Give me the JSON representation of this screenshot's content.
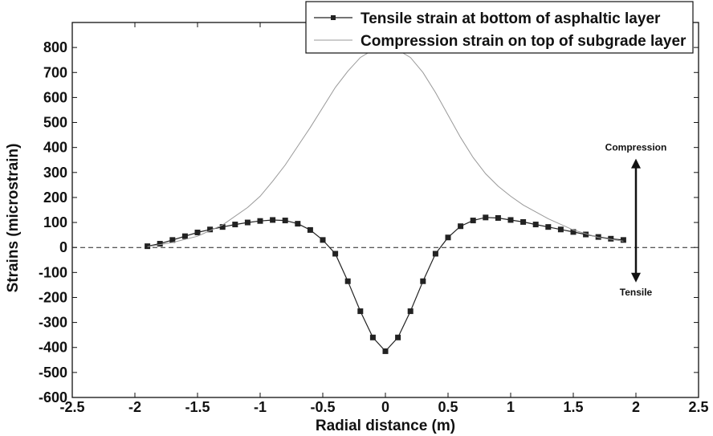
{
  "chart_data": {
    "type": "line",
    "xlabel": "Radial distance (m)",
    "ylabel": "Strains (microstrain)",
    "xlim": [
      -2.5,
      2.5
    ],
    "ylim": [
      -600,
      900
    ],
    "x_ticks": [
      -2.5,
      -2,
      -1.5,
      -1,
      -0.5,
      0,
      0.5,
      1,
      1.5,
      2,
      2.5
    ],
    "y_ticks": [
      -600,
      -500,
      -400,
      -300,
      -200,
      -100,
      0,
      100,
      200,
      300,
      400,
      500,
      600,
      700,
      800
    ],
    "x_tick_labels": [
      "-2.5",
      "-2",
      "-1.5",
      "-1",
      "-0.5",
      "0",
      "0.5",
      "1",
      "1.5",
      "2",
      "2.5"
    ],
    "y_tick_labels": [
      "-600",
      "-500",
      "-400",
      "-300",
      "-200",
      "-100",
      "0",
      "100",
      "200",
      "300",
      "400",
      "500",
      "600",
      "700",
      "800"
    ],
    "grid": false,
    "legend_position": "top-right",
    "series": [
      {
        "name": "Tensile strain at bottom of asphaltic layer",
        "color": "#222222",
        "marker": "square",
        "x": [
          -1.9,
          -1.8,
          -1.7,
          -1.6,
          -1.5,
          -1.4,
          -1.3,
          -1.2,
          -1.1,
          -1.0,
          -0.9,
          -0.8,
          -0.7,
          -0.6,
          -0.5,
          -0.4,
          -0.3,
          -0.2,
          -0.1,
          0.0,
          0.1,
          0.2,
          0.3,
          0.4,
          0.5,
          0.6,
          0.7,
          0.8,
          0.9,
          1.0,
          1.1,
          1.2,
          1.3,
          1.4,
          1.5,
          1.6,
          1.7,
          1.8,
          1.9
        ],
        "y": [
          5,
          15,
          30,
          45,
          60,
          72,
          82,
          92,
          100,
          106,
          110,
          108,
          95,
          70,
          30,
          -25,
          -135,
          -255,
          -360,
          -415,
          -360,
          -255,
          -135,
          -25,
          40,
          85,
          108,
          120,
          118,
          110,
          102,
          92,
          82,
          72,
          62,
          52,
          42,
          35,
          30
        ]
      },
      {
        "name": "Compression strain on top of subgrade layer",
        "color": "#999999",
        "marker": "none",
        "x": [
          -1.9,
          -1.7,
          -1.5,
          -1.3,
          -1.1,
          -1.0,
          -0.9,
          -0.8,
          -0.7,
          -0.6,
          -0.5,
          -0.4,
          -0.3,
          -0.2,
          -0.1,
          0.0,
          0.1,
          0.2,
          0.3,
          0.4,
          0.5,
          0.6,
          0.7,
          0.8,
          0.9,
          1.0,
          1.1,
          1.3,
          1.5,
          1.7,
          1.9
        ],
        "y": [
          3,
          20,
          45,
          90,
          160,
          205,
          265,
          330,
          405,
          480,
          560,
          640,
          705,
          760,
          790,
          800,
          790,
          760,
          700,
          620,
          530,
          440,
          360,
          295,
          245,
          205,
          170,
          115,
          70,
          40,
          25
        ]
      }
    ],
    "reference_line": {
      "y": 0,
      "x_start": -2.5,
      "x_end": 2.5,
      "style": "dashed",
      "color": "#222222"
    },
    "annotations": [
      {
        "text": "Compression",
        "x": 2.0,
        "y": 400
      },
      {
        "text": "Tensile",
        "x": 2.0,
        "y": -180
      }
    ],
    "arrow": {
      "x": 2.0,
      "y_top": 355,
      "y_bottom": -140
    }
  }
}
